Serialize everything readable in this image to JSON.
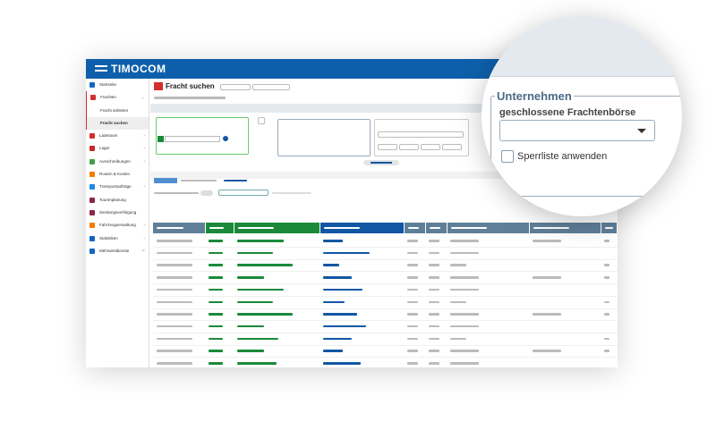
{
  "app": {
    "brand": "TIMOCOM",
    "page_title": "Fracht suchen"
  },
  "sidebar": {
    "items": [
      {
        "label": "Startseite",
        "icon": "home-icon",
        "color": "#1565c0",
        "chevron": false
      },
      {
        "label": "Frachten",
        "icon": "freight-icon",
        "color": "#d32f2f",
        "chevron": true,
        "expanded": true
      },
      {
        "label": "Fracht anbieten",
        "sub": true
      },
      {
        "label": "Fracht suchen",
        "sub": true,
        "active": true
      },
      {
        "label": "Laderaum",
        "icon": "truck-icon",
        "color": "#d32f2f",
        "chevron": true
      },
      {
        "label": "Lager",
        "icon": "warehouse-icon",
        "color": "#c62828",
        "chevron": true
      },
      {
        "label": "Ausschreibungen",
        "icon": "tender-icon",
        "color": "#43a047",
        "chevron": true
      },
      {
        "label": "Routen & Kosten",
        "icon": "route-icon",
        "color": "#f57c00",
        "chevron": false
      },
      {
        "label": "Transportaufträge",
        "icon": "orders-icon",
        "color": "#1e88e5",
        "chevron": true
      },
      {
        "label": "Tourenplanung",
        "icon": "tour-icon",
        "color": "#8e244d",
        "chevron": false
      },
      {
        "label": "Sendungsverfolgung",
        "icon": "tracking-icon",
        "color": "#8e244d",
        "chevron": false
      },
      {
        "label": "Fahrzeugverwaltung",
        "icon": "vehicle-icon",
        "color": "#f57c00",
        "chevron": true
      },
      {
        "label": "Statistiken",
        "icon": "stats-icon",
        "color": "#1565c0",
        "chevron": true
      },
      {
        "label": "Mehrwertdienste",
        "icon": "services-icon",
        "color": "#1565c0",
        "chevron": false,
        "external": true
      }
    ]
  },
  "magnifier": {
    "section_title": "Unternehmen",
    "field_label": "geschlossene Frachtenbörse",
    "select_value": "",
    "checkbox_label": "Sperrliste anwenden",
    "checkbox_checked": false
  },
  "colors": {
    "header": "#0e5fab",
    "green": "#1a8a3a",
    "blue": "#1157a3",
    "slate": "#5f7f99"
  }
}
